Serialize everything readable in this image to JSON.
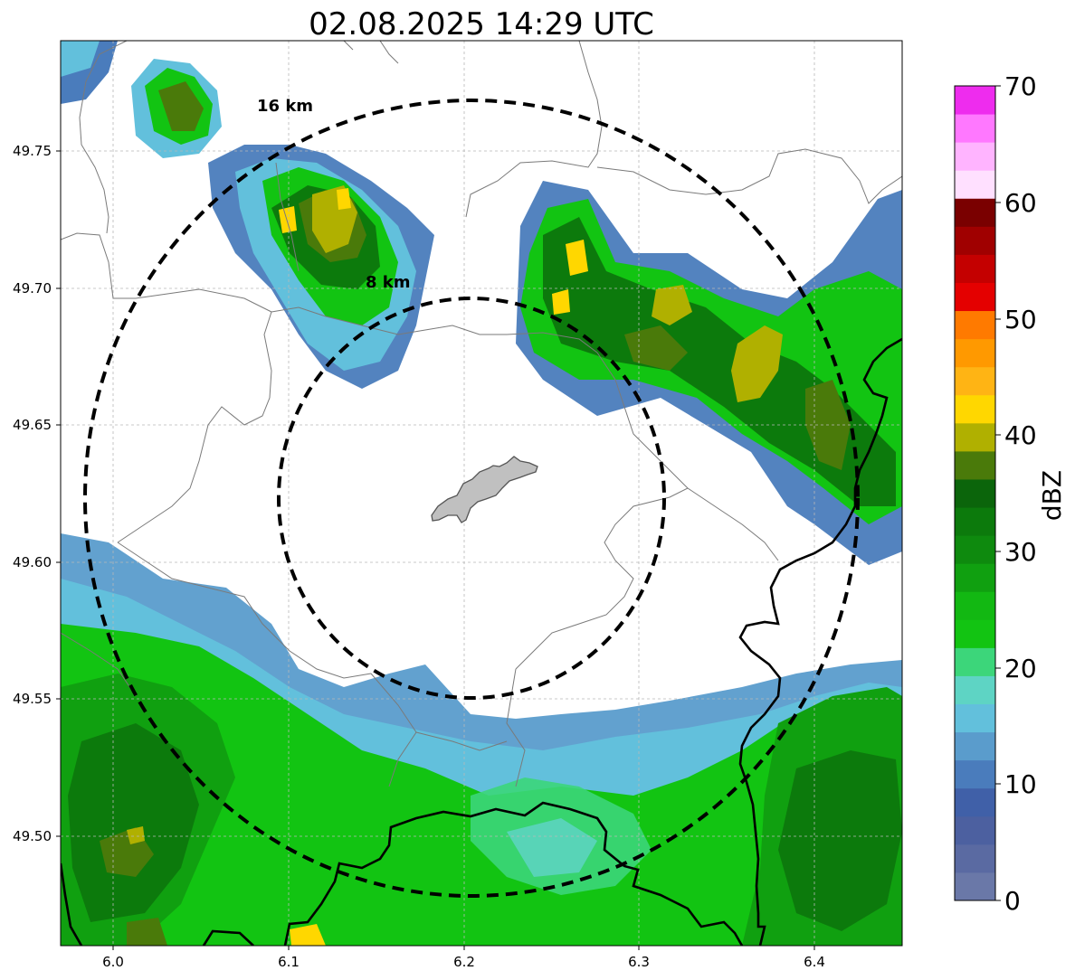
{
  "title": "02.08.2025 14:29 UTC",
  "map": {
    "lon_range": [
      5.97,
      6.45
    ],
    "lat_range": [
      49.46,
      49.79
    ],
    "x_ticks": [
      "6.0",
      "6.1",
      "6.2",
      "6.3",
      "6.4"
    ],
    "y_ticks": [
      "49.50",
      "49.55",
      "49.60",
      "49.65",
      "49.70",
      "49.75"
    ],
    "grid": true,
    "center": {
      "lon": 6.205,
      "lat": 49.623
    },
    "rings": [
      {
        "label": "8 km",
        "radius_km": 8
      },
      {
        "label": "16 km",
        "radius_km": 16
      }
    ]
  },
  "colorbar": {
    "label": "dBZ",
    "range": [
      0,
      70
    ],
    "ticks": [
      "0",
      "10",
      "20",
      "30",
      "40",
      "50",
      "60",
      "70"
    ],
    "colors": [
      "#6a78a8",
      "#5a6aa2",
      "#4c60a0",
      "#4060a8",
      "#4a7cbc",
      "#5a9ccc",
      "#62c0dc",
      "#5ed4c4",
      "#3cd67a",
      "#12c412",
      "#12b812",
      "#10a010",
      "#0e8a0e",
      "#0c7a0c",
      "#0b650b",
      "#4a7a0a",
      "#b0b000",
      "#ffd700",
      "#ffb414",
      "#ff9900",
      "#ff7a00",
      "#e40000",
      "#c40000",
      "#a00000",
      "#7a0000",
      "#ffe0ff",
      "#ffb4ff",
      "#ff78ff",
      "#ee2cee"
    ]
  },
  "colors": {
    "boundary": "#7a7a7a",
    "border": "#000000",
    "city_fill": "#c0c0c0"
  }
}
